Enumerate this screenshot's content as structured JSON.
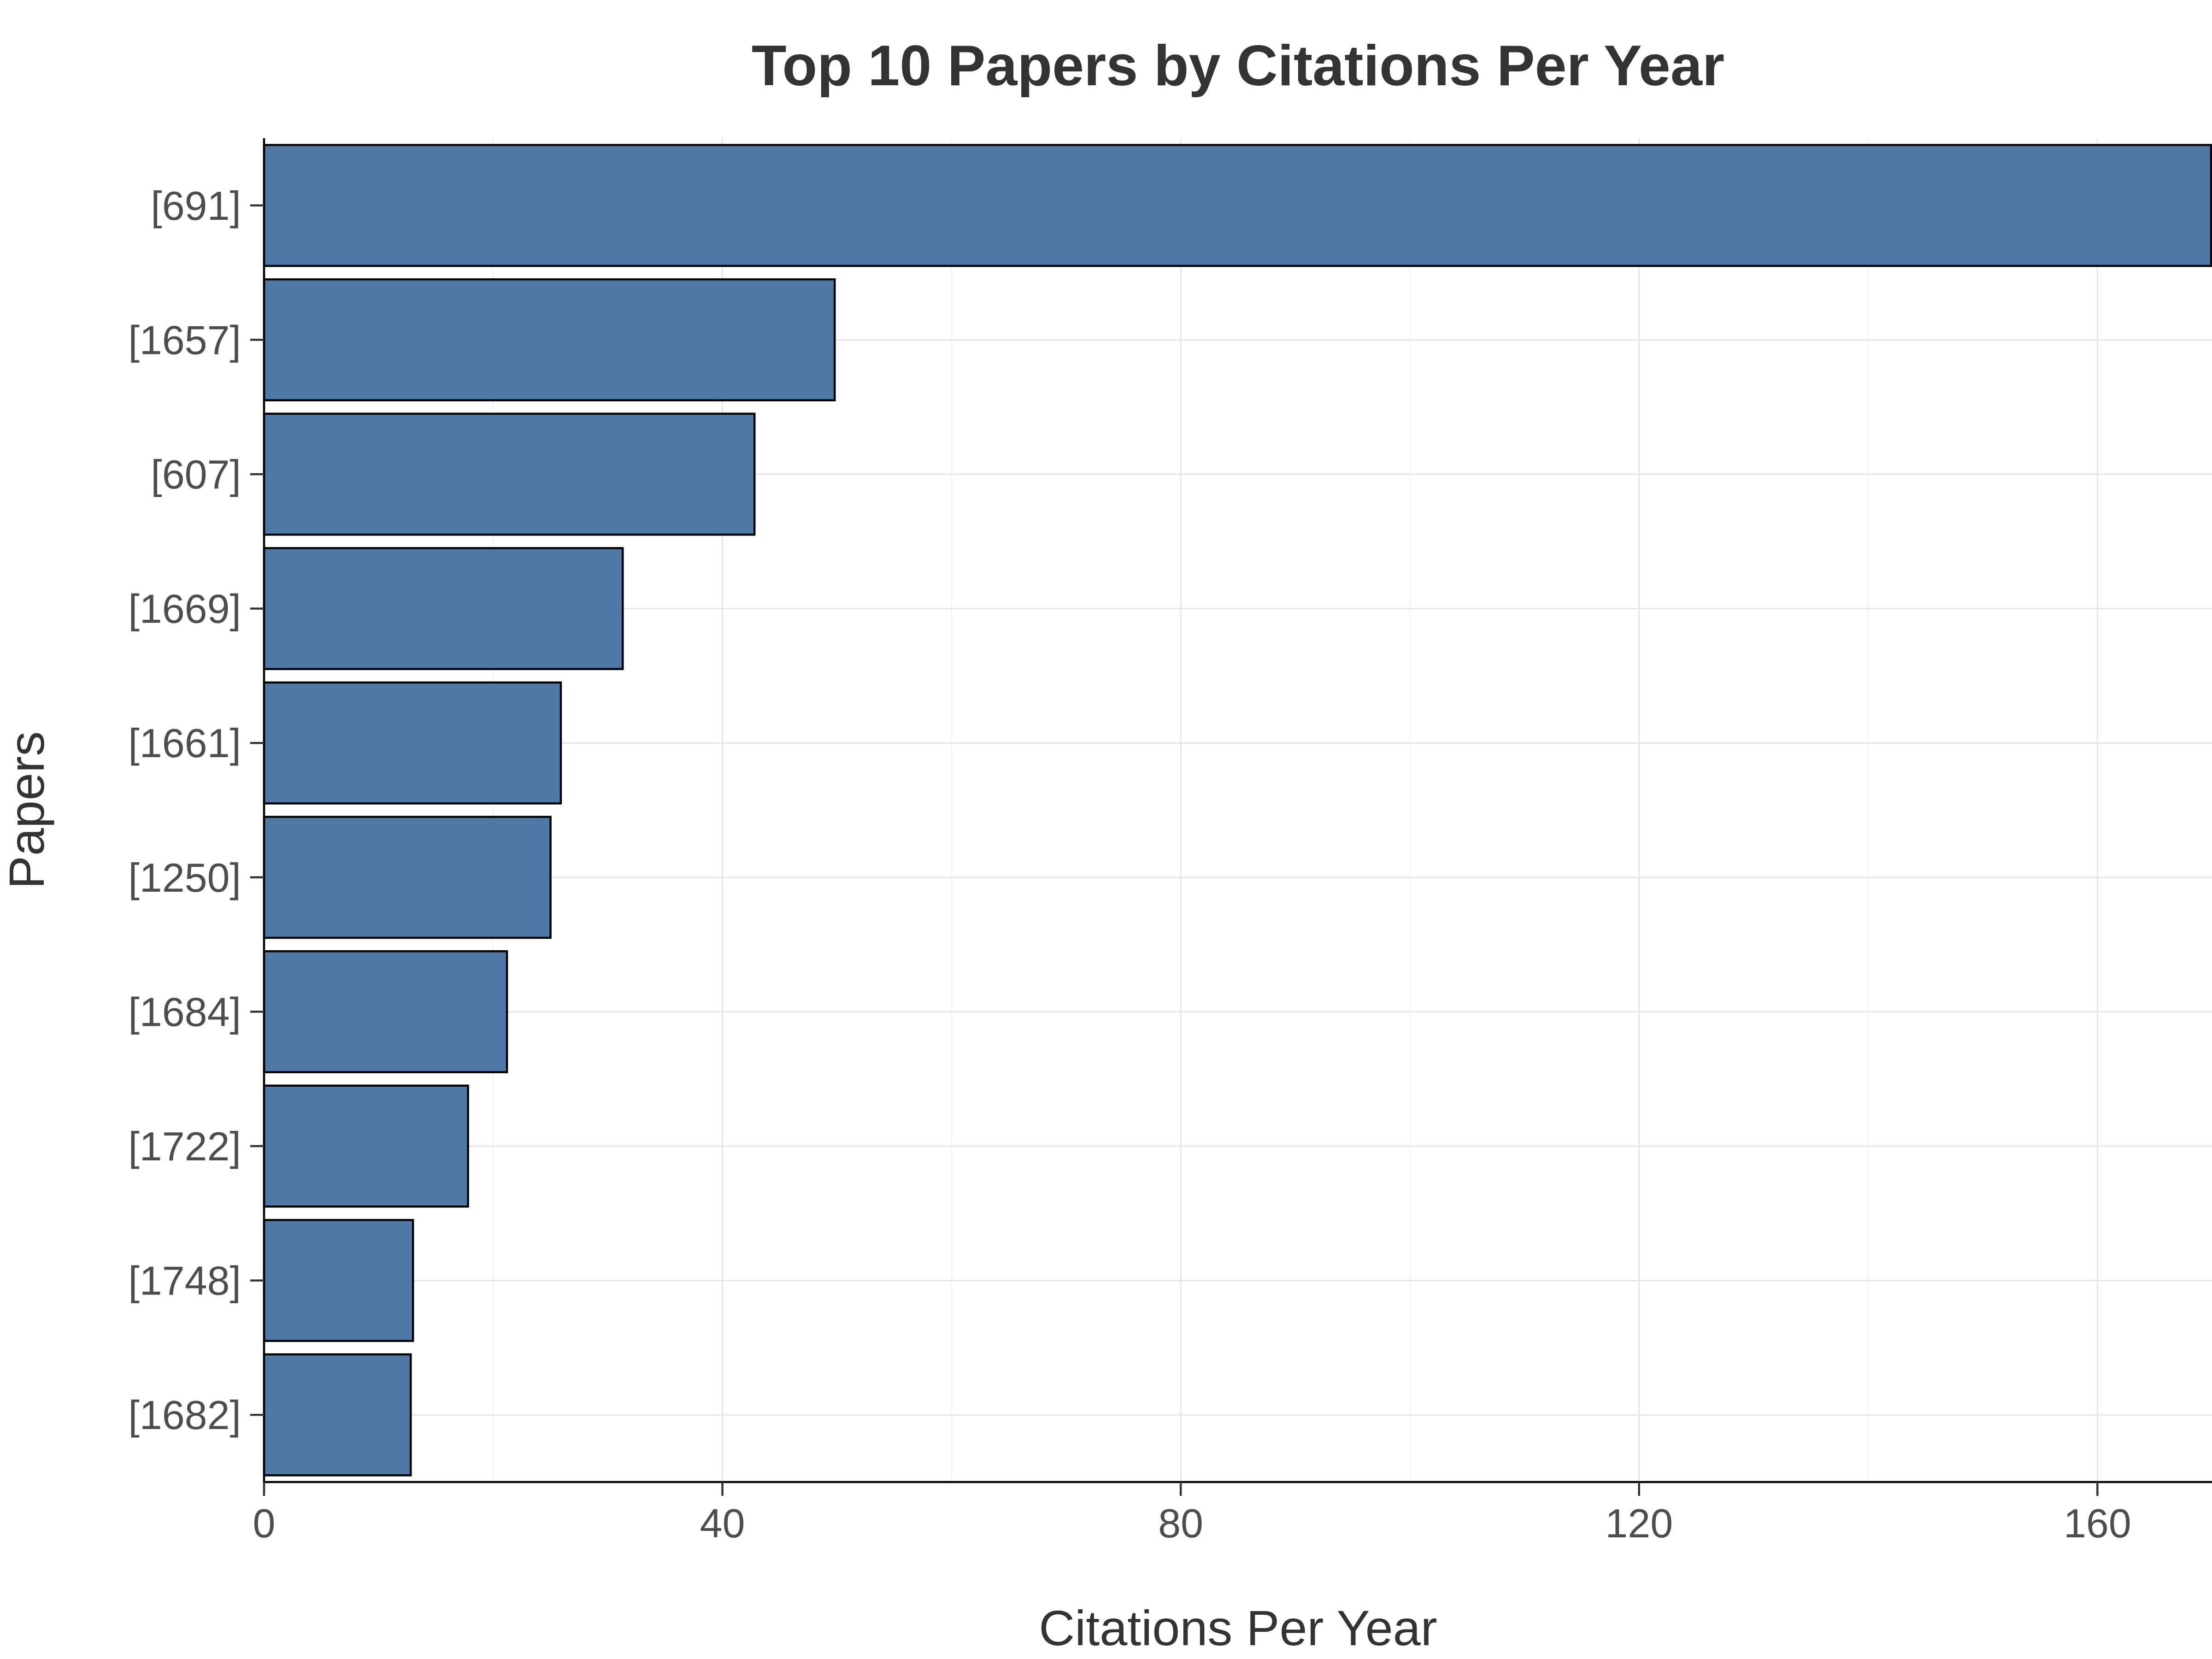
{
  "chart_data": {
    "type": "bar",
    "orientation": "horizontal",
    "title": "Top 10 Papers by Citations Per Year",
    "xlabel": "Citations Per Year",
    "ylabel": "Papers",
    "categories": [
      "[691]",
      "[1657]",
      "[607]",
      "[1669]",
      "[1661]",
      "[1250]",
      "[1684]",
      "[1722]",
      "[1748]",
      "[1682]"
    ],
    "values": [
      170,
      49.8,
      42.8,
      31.3,
      25.9,
      25,
      21.2,
      17.8,
      13,
      12.8
    ],
    "xlim": [
      0,
      170
    ],
    "xticks": [
      0,
      40,
      80,
      120,
      160
    ],
    "xtick_labels": [
      "0",
      "40",
      "80",
      "120",
      "160"
    ],
    "grid": true,
    "colors": {
      "bar_fill": "#4e79a7",
      "bar_stroke": "#000000",
      "grid": "#e6e6e6"
    }
  }
}
